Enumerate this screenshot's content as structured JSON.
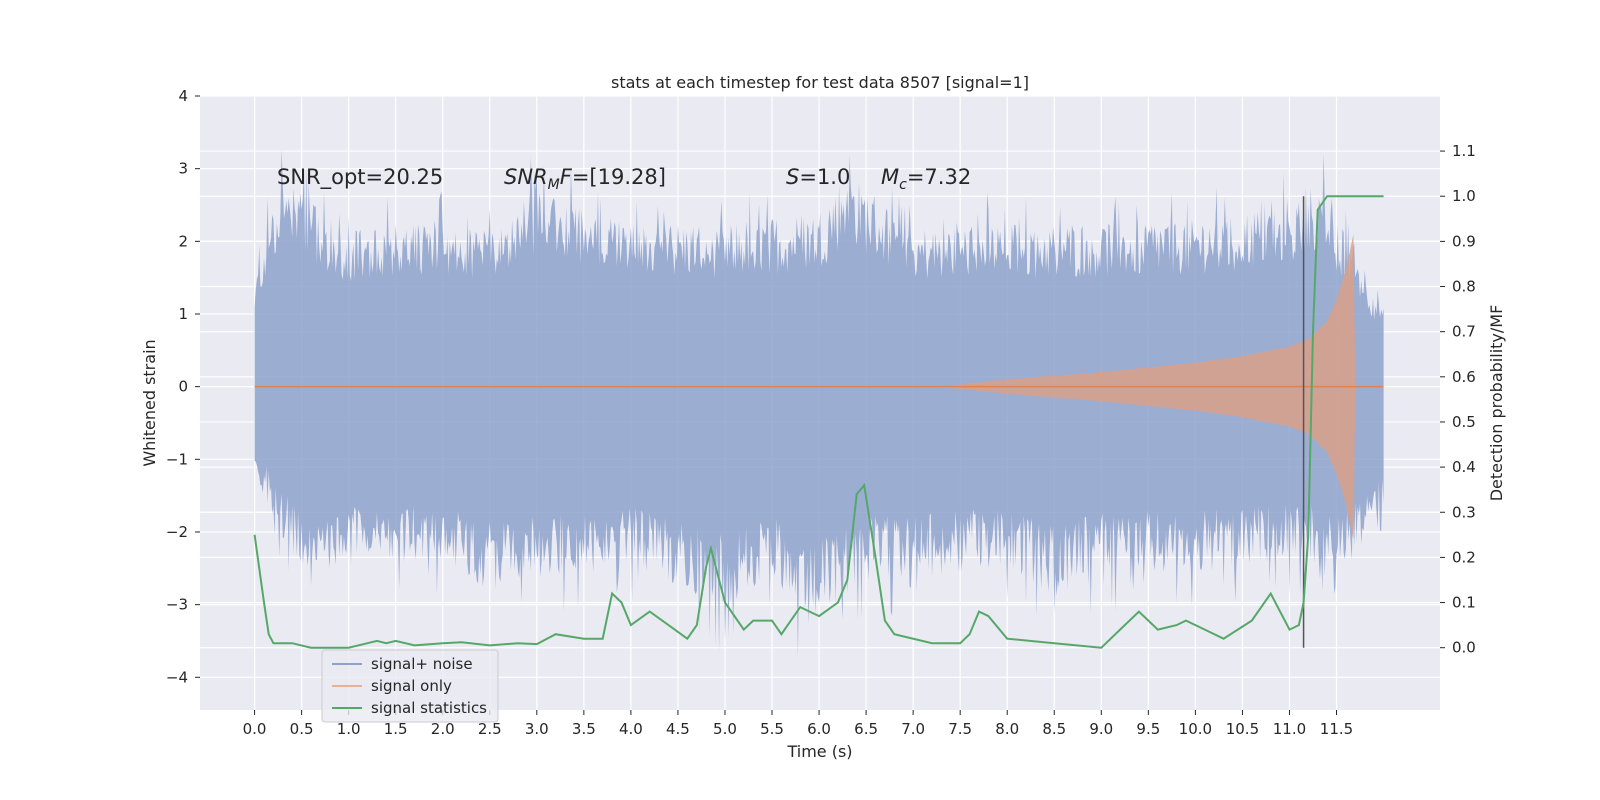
{
  "chart_data": {
    "type": "line",
    "title": "stats at each timestep for test data 8507 [signal=1]",
    "xlabel": "Time (s)",
    "ylabel": "Whitened strain",
    "y2label": "Detection probability/MF",
    "xlim": [
      -0.58,
      12.6
    ],
    "ylim": [
      -4.45,
      4.0
    ],
    "y2lim": [
      -0.138,
      1.222
    ],
    "xticks": [
      "0.0",
      "0.5",
      "1.0",
      "1.5",
      "2.0",
      "2.5",
      "3.0",
      "3.5",
      "4.0",
      "4.5",
      "5.0",
      "5.5",
      "6.0",
      "6.5",
      "7.0",
      "7.5",
      "8.0",
      "8.5",
      "9.0",
      "9.5",
      "10.0",
      "10.5",
      "11.0",
      "11.5"
    ],
    "yticks": [
      "4",
      "3",
      "2",
      "1",
      "0",
      "−1",
      "−2",
      "−3",
      "−4"
    ],
    "y2ticks": [
      "1.1",
      "1.0",
      "0.9",
      "0.8",
      "0.7",
      "0.6",
      "0.5",
      "0.4",
      "0.3",
      "0.2",
      "0.1",
      "0.0"
    ],
    "annotations": {
      "snr_opt": "SNR_opt=20.25",
      "snr_mf_prefix": "SNR",
      "snr_mf_sub": "M",
      "snr_mf_suffix": "F=[19.28]",
      "s_prefix": "S",
      "s_value": "=1.0",
      "mc_prefix": "M",
      "mc_sub": "c",
      "mc_value": "=7.32"
    },
    "vline_x": 11.15,
    "series": [
      {
        "name": "signal+ noise",
        "color": "#8ea2cc",
        "t_range": [
          0.0,
          12.0
        ],
        "envelope_upper": [
          [
            0.0,
            1.6
          ],
          [
            0.25,
            3.5
          ],
          [
            1.0,
            2.6
          ],
          [
            2.0,
            2.8
          ],
          [
            2.5,
            2.6
          ],
          [
            3.0,
            3.3
          ],
          [
            4.0,
            2.7
          ],
          [
            5.0,
            2.7
          ],
          [
            6.0,
            2.9
          ],
          [
            6.3,
            3.6
          ],
          [
            7.0,
            2.6
          ],
          [
            8.0,
            2.7
          ],
          [
            9.0,
            2.7
          ],
          [
            10.0,
            2.8
          ],
          [
            11.0,
            3.0
          ],
          [
            11.3,
            3.4
          ],
          [
            11.8,
            2.0
          ],
          [
            12.0,
            1.3
          ]
        ],
        "envelope_lower": [
          [
            0.0,
            -1.6
          ],
          [
            0.5,
            -3.2
          ],
          [
            1.0,
            -3.0
          ],
          [
            2.0,
            -2.9
          ],
          [
            2.5,
            -3.4
          ],
          [
            3.0,
            -3.2
          ],
          [
            4.0,
            -3.0
          ],
          [
            5.0,
            -3.7
          ],
          [
            5.5,
            -3.1
          ],
          [
            5.8,
            -4.1
          ],
          [
            6.5,
            -3.2
          ],
          [
            7.0,
            -3.2
          ],
          [
            8.0,
            -3.0
          ],
          [
            8.5,
            -3.5
          ],
          [
            9.0,
            -3.1
          ],
          [
            10.0,
            -3.1
          ],
          [
            11.0,
            -2.9
          ],
          [
            11.6,
            -3.1
          ],
          [
            12.0,
            -2.0
          ]
        ]
      },
      {
        "name": "signal only",
        "color": "#dd8452",
        "t_range": [
          0.0,
          12.0
        ],
        "amplitude": [
          [
            0.0,
            0.0
          ],
          [
            7.2,
            0.0
          ],
          [
            7.5,
            0.03
          ],
          [
            8.0,
            0.1
          ],
          [
            9.0,
            0.2
          ],
          [
            10.0,
            0.33
          ],
          [
            10.5,
            0.42
          ],
          [
            11.0,
            0.55
          ],
          [
            11.2,
            0.65
          ],
          [
            11.4,
            0.9
          ],
          [
            11.5,
            1.2
          ],
          [
            11.6,
            1.6
          ],
          [
            11.68,
            2.1
          ],
          [
            11.7,
            0.0
          ],
          [
            12.0,
            0.0
          ]
        ]
      },
      {
        "name": "signal statistics",
        "color": "#55a868",
        "points": [
          [
            0.0,
            0.25
          ],
          [
            0.1,
            0.1
          ],
          [
            0.15,
            0.03
          ],
          [
            0.2,
            0.01
          ],
          [
            0.4,
            0.01
          ],
          [
            0.6,
            0.0
          ],
          [
            1.0,
            0.0
          ],
          [
            1.2,
            0.01
          ],
          [
            1.3,
            0.015
          ],
          [
            1.4,
            0.01
          ],
          [
            1.5,
            0.015
          ],
          [
            1.7,
            0.005
          ],
          [
            2.0,
            0.01
          ],
          [
            2.2,
            0.012
          ],
          [
            2.5,
            0.005
          ],
          [
            2.8,
            0.01
          ],
          [
            3.0,
            0.008
          ],
          [
            3.2,
            0.03
          ],
          [
            3.5,
            0.02
          ],
          [
            3.7,
            0.02
          ],
          [
            3.8,
            0.12
          ],
          [
            3.9,
            0.1
          ],
          [
            4.0,
            0.05
          ],
          [
            4.2,
            0.08
          ],
          [
            4.4,
            0.05
          ],
          [
            4.6,
            0.02
          ],
          [
            4.7,
            0.05
          ],
          [
            4.8,
            0.18
          ],
          [
            4.85,
            0.22
          ],
          [
            5.0,
            0.1
          ],
          [
            5.2,
            0.04
          ],
          [
            5.3,
            0.06
          ],
          [
            5.5,
            0.06
          ],
          [
            5.6,
            0.03
          ],
          [
            5.8,
            0.09
          ],
          [
            6.0,
            0.07
          ],
          [
            6.2,
            0.1
          ],
          [
            6.3,
            0.15
          ],
          [
            6.4,
            0.34
          ],
          [
            6.48,
            0.36
          ],
          [
            6.6,
            0.2
          ],
          [
            6.7,
            0.06
          ],
          [
            6.8,
            0.03
          ],
          [
            7.2,
            0.01
          ],
          [
            7.5,
            0.01
          ],
          [
            7.6,
            0.03
          ],
          [
            7.7,
            0.08
          ],
          [
            7.8,
            0.07
          ],
          [
            8.0,
            0.02
          ],
          [
            8.5,
            0.01
          ],
          [
            9.0,
            0.0
          ],
          [
            9.2,
            0.04
          ],
          [
            9.4,
            0.08
          ],
          [
            9.6,
            0.04
          ],
          [
            9.8,
            0.05
          ],
          [
            9.9,
            0.06
          ],
          [
            10.1,
            0.04
          ],
          [
            10.3,
            0.02
          ],
          [
            10.6,
            0.06
          ],
          [
            10.8,
            0.12
          ],
          [
            11.0,
            0.04
          ],
          [
            11.1,
            0.05
          ],
          [
            11.15,
            0.1
          ],
          [
            11.2,
            0.25
          ],
          [
            11.25,
            0.7
          ],
          [
            11.3,
            0.97
          ],
          [
            11.4,
            1.0
          ],
          [
            11.5,
            1.0
          ],
          [
            12.0,
            1.0
          ]
        ]
      }
    ],
    "legend": [
      "signal+ noise",
      "signal only",
      "signal statistics"
    ],
    "grid": true,
    "legend_position": "lower-left"
  }
}
